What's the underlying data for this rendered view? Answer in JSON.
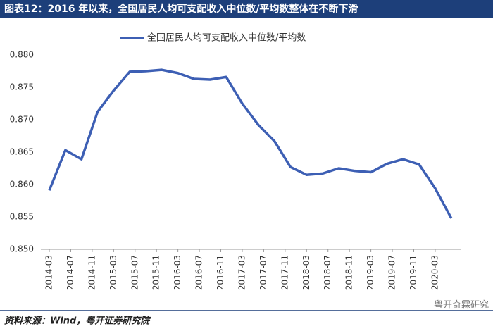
{
  "title": "图表12：2016 年以来，全国居民人均可支配收入中位数/平均数整体在不断下滑",
  "source": "资料来源：Wind，粤开证券研究院",
  "watermark": "粤开奇霖研究",
  "chart_data": {
    "type": "line",
    "x": [
      "2014-03",
      "2014-06",
      "2014-09",
      "2014-12",
      "2015-03",
      "2015-06",
      "2015-09",
      "2015-12",
      "2016-03",
      "2016-06",
      "2016-09",
      "2016-12",
      "2017-03",
      "2017-06",
      "2017-09",
      "2017-12",
      "2018-03",
      "2018-06",
      "2018-09",
      "2018-12",
      "2019-03",
      "2019-06",
      "2019-09",
      "2019-12",
      "2020-03",
      "2020-06"
    ],
    "series": [
      {
        "name": "全国居民人均可支配收入中位数/平均数",
        "color": "#3d5fb4",
        "values": [
          0.8591,
          0.8653,
          0.8639,
          0.8712,
          0.8745,
          0.8774,
          0.8775,
          0.8777,
          0.8772,
          0.8763,
          0.8762,
          0.8766,
          0.8725,
          0.8692,
          0.8667,
          0.8627,
          0.8615,
          0.8617,
          0.8625,
          0.8621,
          0.8619,
          0.8632,
          0.8639,
          0.8631,
          0.8594,
          0.8548
        ]
      }
    ],
    "xticks": [
      "2014-03",
      "2014-07",
      "2014-11",
      "2015-03",
      "2015-07",
      "2015-11",
      "2016-03",
      "2016-07",
      "2016-11",
      "2017-03",
      "2017-07",
      "2017-11",
      "2018-03",
      "2018-07",
      "2018-11",
      "2019-03",
      "2019-07",
      "2019-11",
      "2020-03"
    ],
    "ylim": [
      0.85,
      0.88
    ],
    "yticks": [
      {
        "value": 0.85,
        "label": "0.850"
      },
      {
        "value": 0.855,
        "label": "0.855"
      },
      {
        "value": 0.86,
        "label": "0.860"
      },
      {
        "value": 0.865,
        "label": "0.865"
      },
      {
        "value": 0.87,
        "label": "0.870"
      },
      {
        "value": 0.875,
        "label": "0.875"
      },
      {
        "value": 0.88,
        "label": "0.880"
      }
    ],
    "grid": false,
    "legend": "top"
  }
}
